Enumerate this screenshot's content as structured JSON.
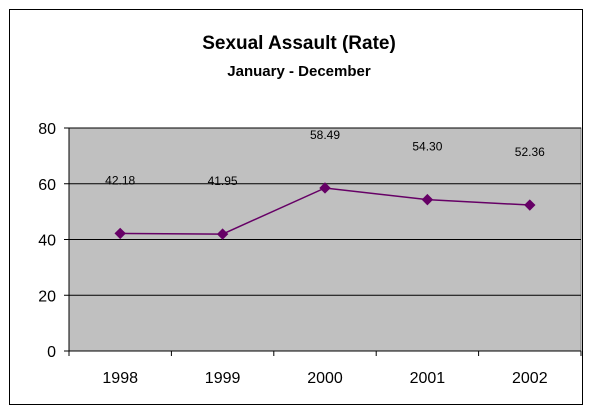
{
  "chart_data": {
    "type": "line",
    "title": "Sexual Assault (Rate)",
    "subtitle": "January - December",
    "xlabel": "",
    "ylabel": "",
    "categories": [
      "1998",
      "1999",
      "2000",
      "2001",
      "2002"
    ],
    "series": [
      {
        "values": [
          42.18,
          41.95,
          58.49,
          54.3,
          52.36
        ],
        "labels": [
          "42.18",
          "41.95",
          "58.49",
          "54.30",
          "52.36"
        ],
        "color": "#660066",
        "marker": "diamond"
      }
    ],
    "ylim": [
      0,
      80
    ],
    "yticks": [
      "0",
      "20",
      "40",
      "60",
      "80"
    ],
    "grid": true,
    "legend": "none",
    "plot_background": "#c0c0c0",
    "gridline_color": "#000000"
  }
}
